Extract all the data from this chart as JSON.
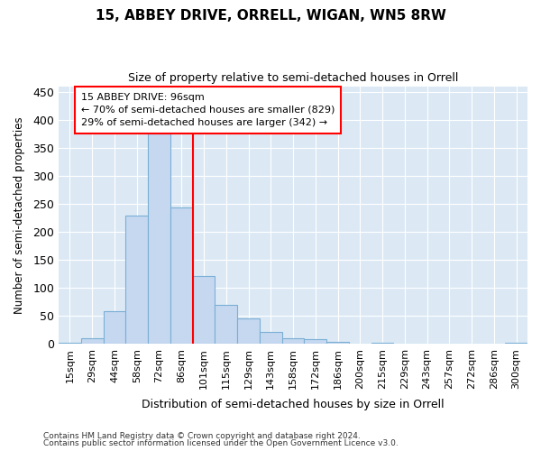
{
  "title_line1": "15, ABBEY DRIVE, ORRELL, WIGAN, WN5 8RW",
  "title_line2": "Size of property relative to semi-detached houses in Orrell",
  "xlabel": "Distribution of semi-detached houses by size in Orrell",
  "ylabel": "Number of semi-detached properties",
  "categories": [
    "15sqm",
    "29sqm",
    "44sqm",
    "58sqm",
    "72sqm",
    "86sqm",
    "101sqm",
    "115sqm",
    "129sqm",
    "143sqm",
    "158sqm",
    "172sqm",
    "186sqm",
    "200sqm",
    "215sqm",
    "229sqm",
    "243sqm",
    "257sqm",
    "272sqm",
    "286sqm",
    "300sqm"
  ],
  "values": [
    2,
    10,
    58,
    228,
    375,
    243,
    120,
    69,
    45,
    20,
    10,
    8,
    3,
    0,
    1,
    0,
    0,
    0,
    0,
    0,
    1
  ],
  "bar_color": "#c5d8f0",
  "bar_edge_color": "#7bafd4",
  "annotation_line1": "15 ABBEY DRIVE: 96sqm",
  "annotation_line2": "← 70% of semi-detached houses are smaller (829)",
  "annotation_line3": "29% of semi-detached houses are larger (342) →",
  "red_line_index": 5.5,
  "ylim": [
    0,
    460
  ],
  "yticks": [
    0,
    50,
    100,
    150,
    200,
    250,
    300,
    350,
    400,
    450
  ],
  "background_color": "#dce9f5",
  "grid_color": "#ffffff",
  "footer_line1": "Contains HM Land Registry data © Crown copyright and database right 2024.",
  "footer_line2": "Contains public sector information licensed under the Open Government Licence v3.0."
}
